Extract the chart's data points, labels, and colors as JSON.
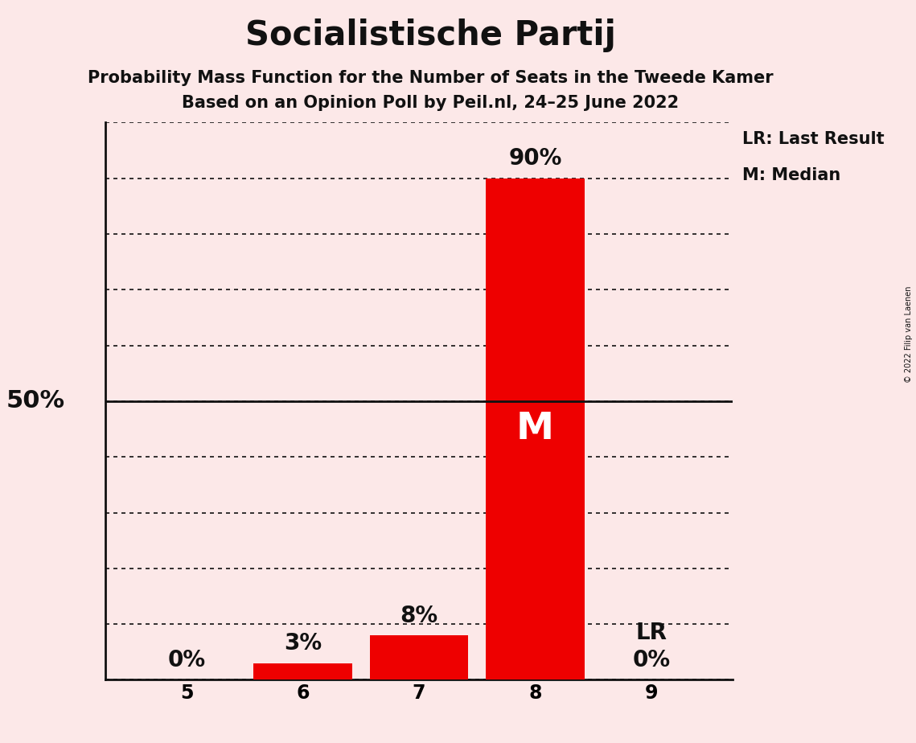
{
  "title": "Socialistische Partij",
  "subtitle1": "Probability Mass Function for the Number of Seats in the Tweede Kamer",
  "subtitle2": "Based on an Opinion Poll by Peil.nl, 24–25 June 2022",
  "copyright": "© 2022 Filip van Laenen",
  "categories": [
    5,
    6,
    7,
    8,
    9
  ],
  "values": [
    0,
    3,
    8,
    90,
    0
  ],
  "bar_color": "#ee0000",
  "background_color": "#fce8e8",
  "median_seat": 8,
  "median_label": "M",
  "lr_seat": 9,
  "lr_label": "LR",
  "legend_lr": "LR: Last Result",
  "legend_m": "M: Median",
  "ylim": [
    0,
    100
  ],
  "yticks": [
    0,
    10,
    20,
    30,
    40,
    50,
    60,
    70,
    80,
    90,
    100
  ],
  "y50_label": "50%",
  "title_fontsize": 30,
  "subtitle_fontsize": 15,
  "tick_fontsize": 17,
  "label_fontsize": 18,
  "bar_width": 0.85
}
